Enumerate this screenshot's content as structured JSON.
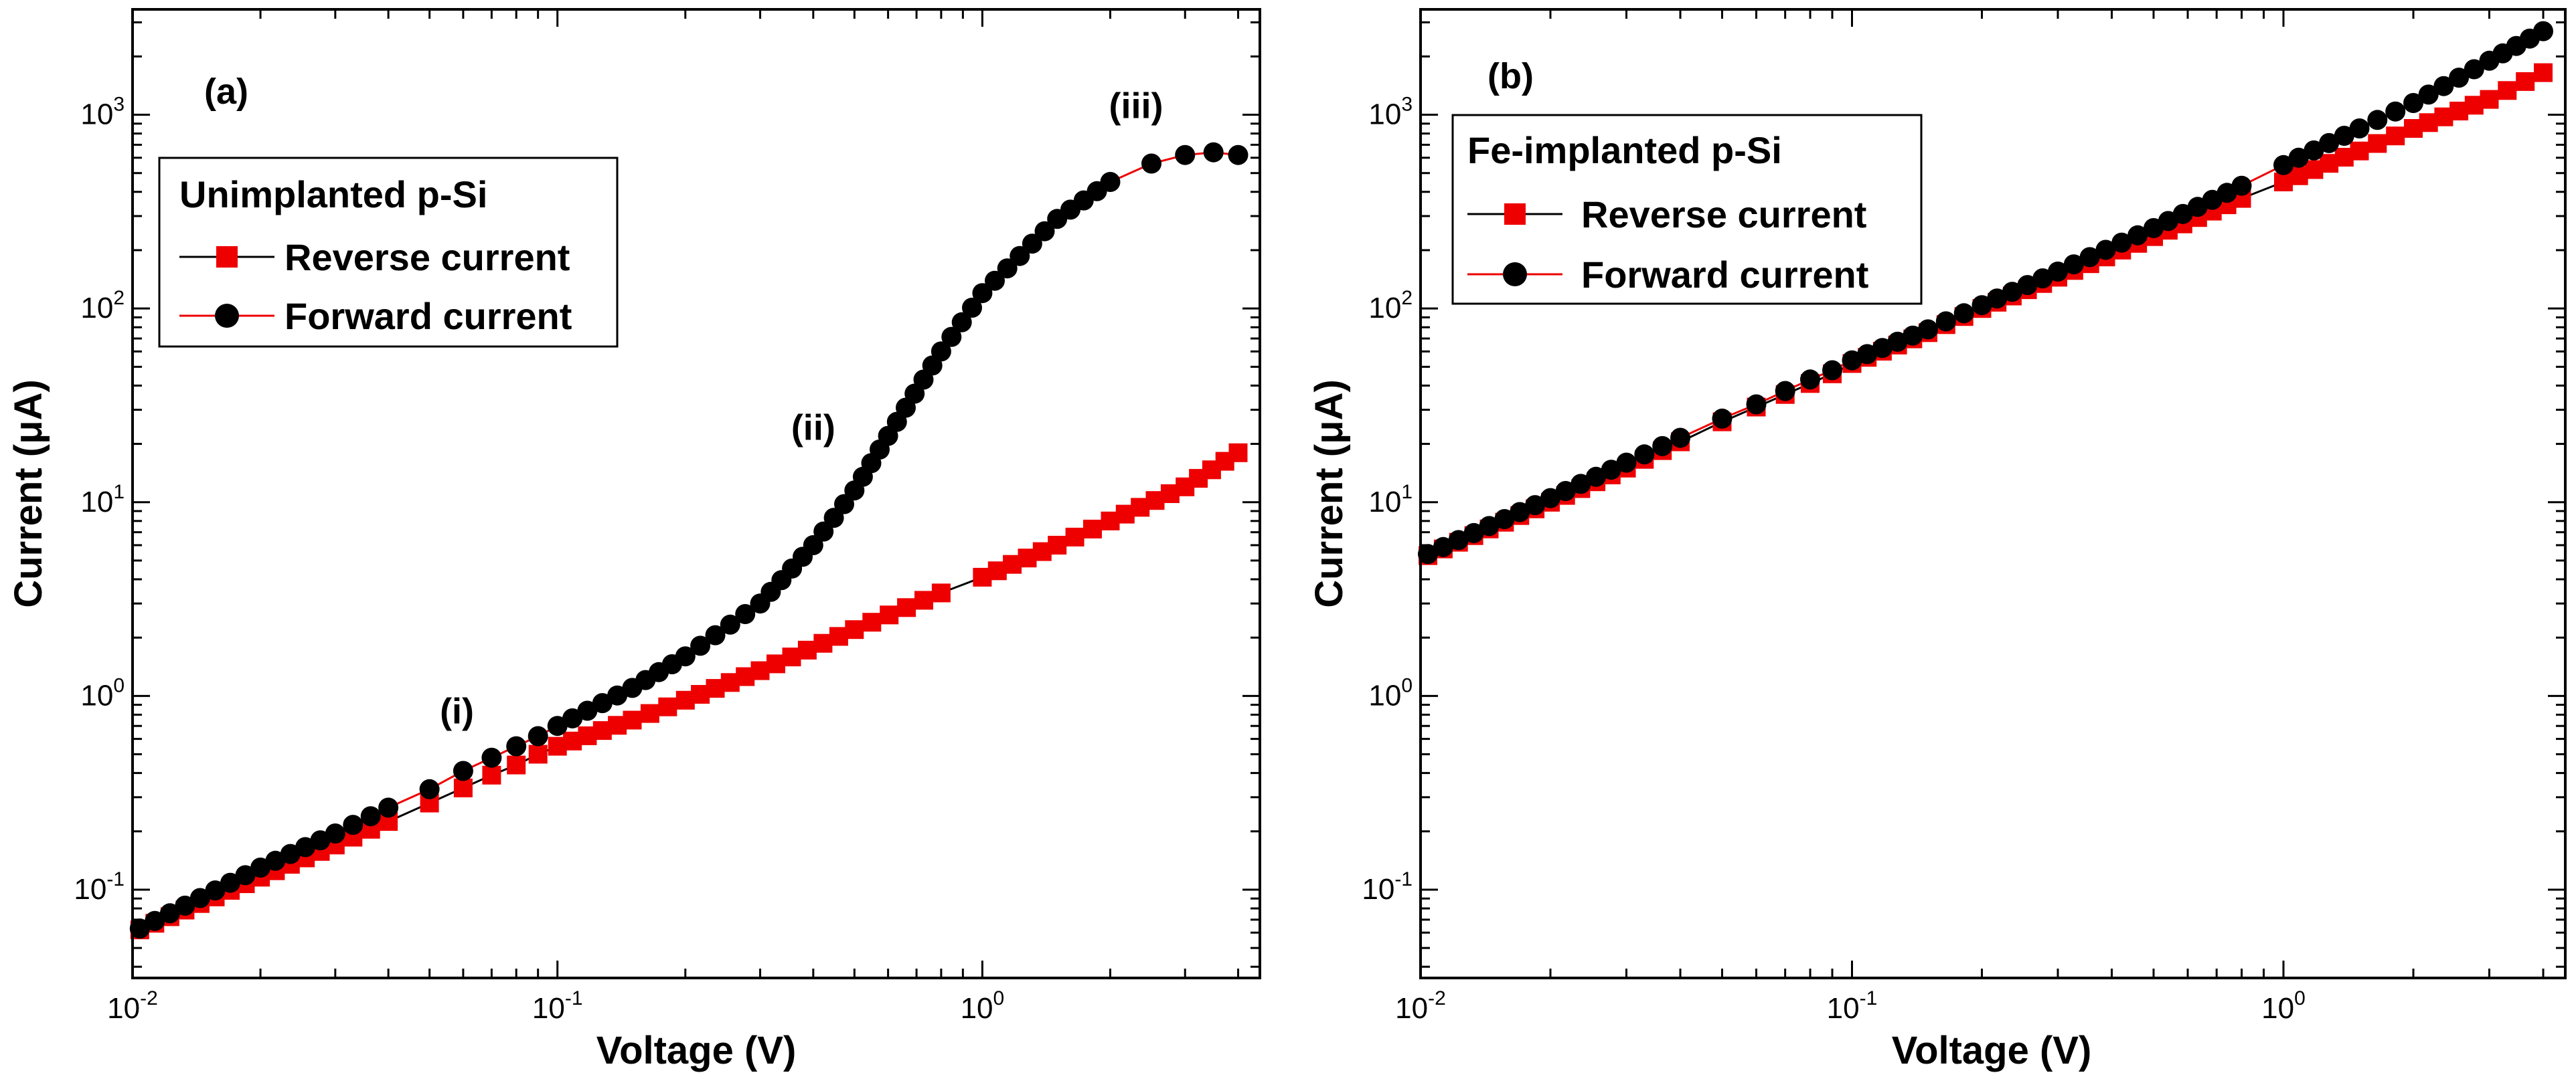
{
  "chart_data": [
    {
      "type": "scatter",
      "panel_label": "(a)",
      "xlabel": "Voltage (V)",
      "ylabel": "Current (μA)",
      "xscale": "log",
      "yscale": "log",
      "xlim": [
        0.01,
        4.5
      ],
      "ylim": [
        0.035,
        3500
      ],
      "x_ticks": [
        {
          "base": "10",
          "exp": "-2"
        },
        {
          "base": "10",
          "exp": "-1"
        },
        {
          "base": "10",
          "exp": "0"
        }
      ],
      "y_ticks": [
        {
          "base": "10",
          "exp": "-1"
        },
        {
          "base": "10",
          "exp": "0"
        },
        {
          "base": "10",
          "exp": "1"
        },
        {
          "base": "10",
          "exp": "2"
        },
        {
          "base": "10",
          "exp": "3"
        }
      ],
      "legend": {
        "position": "top-left",
        "title": "Unimplanted p-Si",
        "entries": [
          {
            "label": "Reverse current",
            "marker": "square",
            "marker_color": "#ee0000",
            "line_color": "#000000"
          },
          {
            "label": "Forward current",
            "marker": "circle",
            "marker_color": "#000000",
            "line_color": "#ee0000"
          }
        ]
      },
      "annotations": [
        {
          "text": "(i)",
          "x": 0.058,
          "y": 0.72
        },
        {
          "text": "(ii)",
          "x": 0.4,
          "y": 21
        },
        {
          "text": "(iii)",
          "x": 2.3,
          "y": 960
        }
      ],
      "series": [
        {
          "name": "Reverse current",
          "marker": "square",
          "color": "#ee0000",
          "line_color": "#000000",
          "x": [
            0.0104,
            0.02,
            0.03,
            0.04,
            0.05,
            0.06,
            0.07,
            0.08,
            0.09,
            0.1,
            0.15,
            0.2,
            0.3,
            0.5,
            0.8,
            1.0,
            1.5,
            2.0,
            3.0,
            4.0
          ],
          "y": [
            0.062,
            0.116,
            0.17,
            0.225,
            0.28,
            0.335,
            0.39,
            0.44,
            0.5,
            0.55,
            0.75,
            0.95,
            1.35,
            2.2,
            3.4,
            4.1,
            6.0,
            8.0,
            12.0,
            18.0
          ]
        },
        {
          "name": "Forward current",
          "marker": "circle",
          "color": "#000000",
          "line_color": "#ee0000",
          "x": [
            0.0104,
            0.02,
            0.03,
            0.04,
            0.05,
            0.06,
            0.07,
            0.08,
            0.09,
            0.1,
            0.15,
            0.2,
            0.3,
            0.4,
            0.5,
            0.6,
            0.8,
            1.0,
            1.5,
            2.0,
            2.5,
            3.0,
            3.5,
            4.0
          ],
          "y": [
            0.063,
            0.13,
            0.195,
            0.265,
            0.33,
            0.41,
            0.48,
            0.55,
            0.62,
            0.7,
            1.1,
            1.6,
            3.0,
            6.0,
            11.5,
            22.0,
            60.0,
            120.0,
            290.0,
            450.0,
            560.0,
            620.0,
            640.0,
            620.0
          ]
        }
      ]
    },
    {
      "type": "scatter",
      "panel_label": "(b)",
      "xlabel": "Voltage (V)",
      "ylabel": "Current (μA)",
      "xscale": "log",
      "yscale": "log",
      "xlim": [
        0.01,
        4.5
      ],
      "ylim": [
        0.035,
        3500
      ],
      "x_ticks": [
        {
          "base": "10",
          "exp": "-2"
        },
        {
          "base": "10",
          "exp": "-1"
        },
        {
          "base": "10",
          "exp": "0"
        }
      ],
      "y_ticks": [
        {
          "base": "10",
          "exp": "-1"
        },
        {
          "base": "10",
          "exp": "0"
        },
        {
          "base": "10",
          "exp": "1"
        },
        {
          "base": "10",
          "exp": "2"
        },
        {
          "base": "10",
          "exp": "3"
        }
      ],
      "legend": {
        "position": "top-left",
        "title": "Fe-implanted p-Si",
        "entries": [
          {
            "label": "Reverse current",
            "marker": "square",
            "marker_color": "#ee0000",
            "line_color": "#000000"
          },
          {
            "label": "Forward current",
            "marker": "circle",
            "marker_color": "#000000",
            "line_color": "#ee0000"
          }
        ]
      },
      "annotations": [],
      "series": [
        {
          "name": "Reverse current",
          "marker": "square",
          "color": "#ee0000",
          "line_color": "#000000",
          "x": [
            0.0104,
            0.02,
            0.03,
            0.04,
            0.05,
            0.06,
            0.07,
            0.08,
            0.09,
            0.1,
            0.15,
            0.2,
            0.3,
            0.5,
            0.8,
            1.0,
            1.5,
            2.0,
            3.0,
            4.0
          ],
          "y": [
            5.3,
            10.0,
            15.0,
            20.5,
            26.0,
            31.0,
            36.0,
            41.0,
            46.0,
            52.0,
            75.0,
            100.0,
            145.0,
            235.0,
            370.0,
            450.0,
            650.0,
            850.0,
            1200.0,
            1650.0
          ]
        },
        {
          "name": "Forward current",
          "marker": "circle",
          "color": "#000000",
          "line_color": "#ee0000",
          "x": [
            0.0104,
            0.02,
            0.03,
            0.04,
            0.05,
            0.06,
            0.07,
            0.08,
            0.09,
            0.1,
            0.15,
            0.2,
            0.3,
            0.5,
            0.8,
            1.0,
            1.5,
            2.0,
            3.0,
            4.0
          ],
          "y": [
            5.4,
            10.5,
            16.0,
            21.5,
            27.0,
            32.0,
            37.5,
            43.0,
            48.0,
            54.0,
            78.0,
            104.0,
            155.0,
            260.0,
            430.0,
            550.0,
            850.0,
            1150.0,
            1900.0,
            2700.0
          ]
        }
      ]
    }
  ]
}
